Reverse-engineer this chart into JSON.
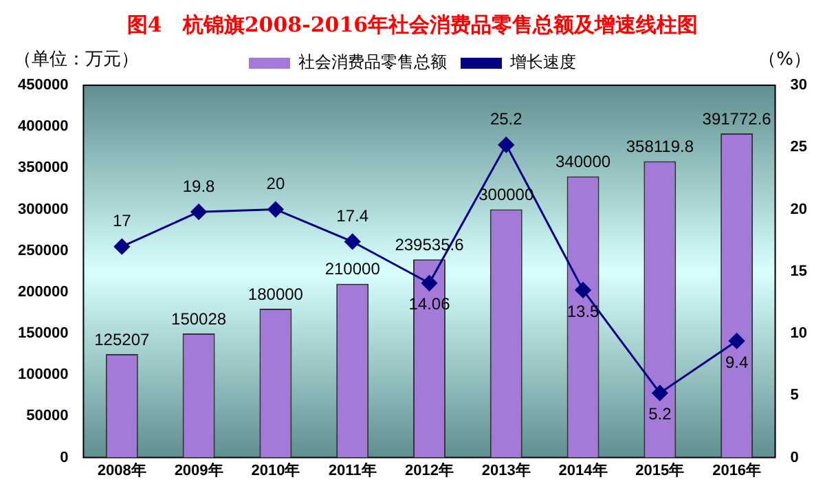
{
  "chart_data": {
    "type": "bar",
    "title": "图4　杭锦旗2008-2016年社会消费品零售总额及增速线柱图",
    "ylabel": "（单位：万元）",
    "y2label": "（%）",
    "categories": [
      "2008年",
      "2009年",
      "2010年",
      "2011年",
      "2012年",
      "2013年",
      "2014年",
      "2015年",
      "2016年"
    ],
    "series": [
      {
        "name": "社会消费品零售总额",
        "color": "#a47ad8",
        "values": [
          125207,
          150028,
          180000,
          210000,
          239535.6,
          300000,
          340000,
          358119.8,
          391772.6
        ]
      },
      {
        "name": "增长速度",
        "type": "line",
        "axis": "y2",
        "color": "#000080",
        "values": [
          17,
          19.8,
          20,
          17.4,
          14.06,
          25.2,
          13.5,
          5.2,
          9.4
        ]
      }
    ],
    "ylim": [
      0,
      450000
    ],
    "yticks": [
      0,
      50000,
      100000,
      150000,
      200000,
      250000,
      300000,
      350000,
      400000,
      450000
    ],
    "y2lim": [
      0,
      30
    ],
    "y2ticks": [
      0,
      5,
      10,
      15,
      20,
      25,
      30
    ],
    "data_labels": true,
    "legend": "top",
    "marker": "diamond",
    "grid": false
  }
}
